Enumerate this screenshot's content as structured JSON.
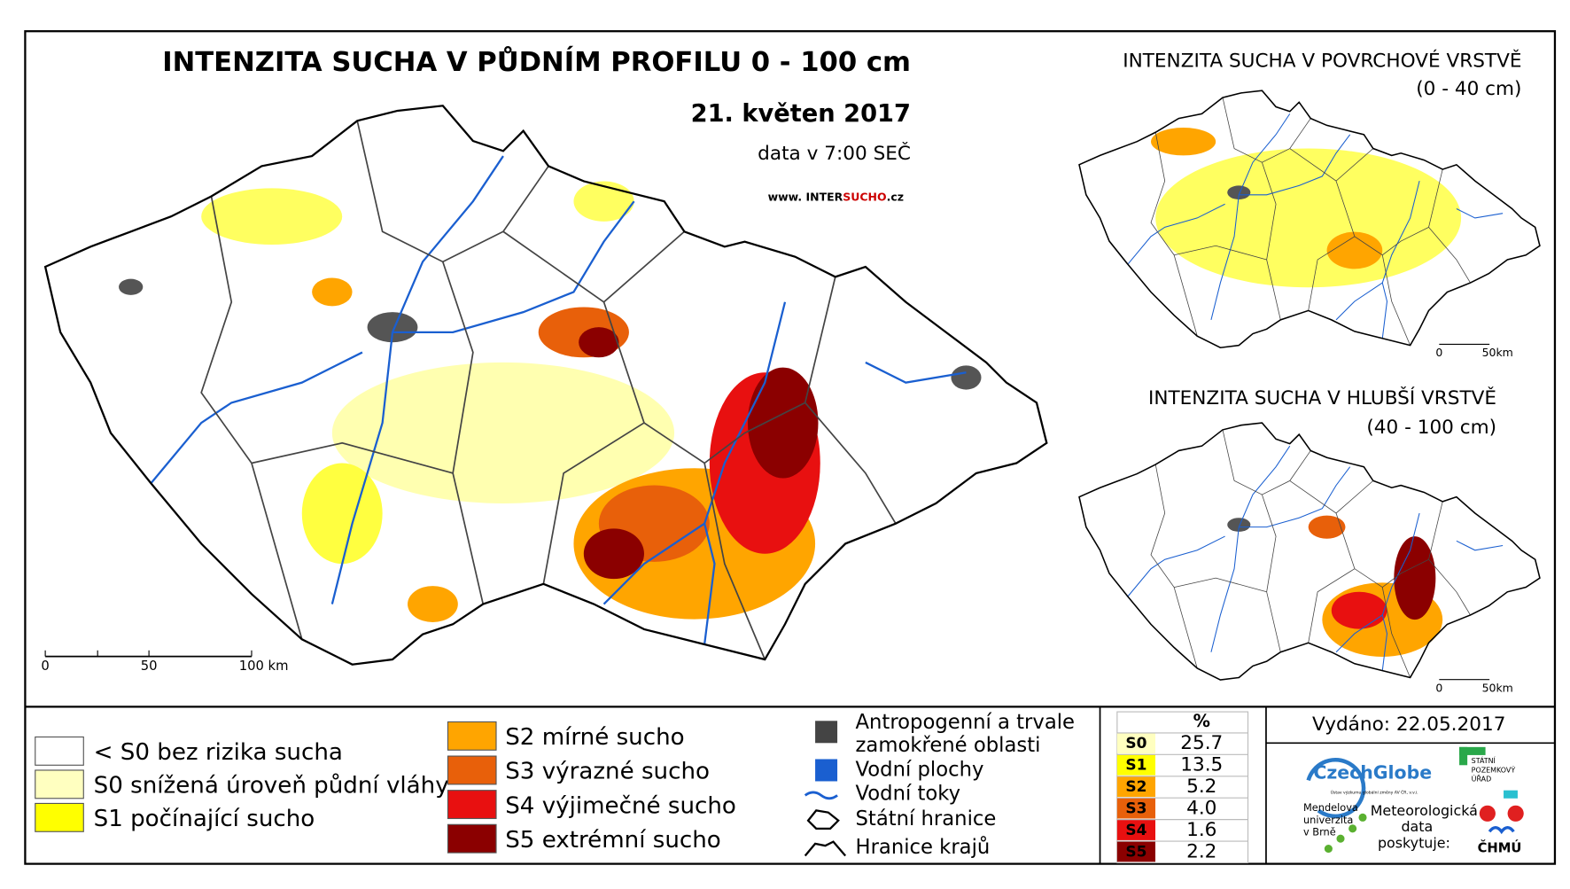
{
  "header": {
    "title": "INTENZITA SUCHA V PŮDNÍM PROFILU 0 - 100 cm",
    "date": "21. květen 2017",
    "data_time": "data v 7:00 SEČ",
    "website_prefix": "www. INTER",
    "website_highlight": "SUCHO",
    "website_suffix": ".cz"
  },
  "main_scale": [
    "0",
    "50",
    "100 km"
  ],
  "insets": [
    {
      "title": "INTENZITA SUCHA V POVRCHOVÉ VRSTVĚ",
      "subtitle": "(0 - 40 cm)",
      "scale": [
        "0",
        "50km"
      ]
    },
    {
      "title": "INTENZITA SUCHA V HLUBŠÍ VRSTVĚ",
      "subtitle": "(40 - 100 cm)",
      "scale": [
        "0",
        "50km"
      ]
    }
  ],
  "legend": {
    "drought_left": [
      {
        "label": "< S0 bez rizika sucha",
        "color": "#ffffff"
      },
      {
        "label": "S0 snížená úroveň půdní vláhy",
        "color": "#ffffc0"
      },
      {
        "label": "S1 počínající sucho",
        "color": "#ffff00"
      }
    ],
    "drought_right": [
      {
        "label": "S2 mírné sucho",
        "color": "#ffa500"
      },
      {
        "label": "S3 výrazné sucho",
        "color": "#e8600a"
      },
      {
        "label": "S4 výjimečné sucho",
        "color": "#e81010"
      },
      {
        "label": "S5 extrémní sucho",
        "color": "#8b0000"
      }
    ],
    "other": {
      "anthropogenic": [
        "Antropogenní a trvale",
        "zamokřené oblasti"
      ],
      "water_bodies": "Vodní plochy",
      "rivers": "Vodní toky",
      "state_border": "Státní hranice",
      "region_border": "Hranice krajů"
    }
  },
  "table": {
    "header": "%",
    "rows": [
      {
        "code": "S0",
        "value": "25.7",
        "color": "#ffffc0"
      },
      {
        "code": "S1",
        "value": "13.5",
        "color": "#ffff00"
      },
      {
        "code": "S2",
        "value": "5.2",
        "color": "#ffa500"
      },
      {
        "code": "S3",
        "value": "4.0",
        "color": "#e8600a"
      },
      {
        "code": "S4",
        "value": "1.6",
        "color": "#e81010"
      },
      {
        "code": "S5",
        "value": "2.2",
        "color": "#8b0000"
      }
    ]
  },
  "issued": "Vydáno: 22.05.2017",
  "logos": {
    "czechglobe": "CzechGlobe",
    "czechglobe_sub": "Ústav výzkumu globální změny AV ČR, v.v.i.",
    "spu": [
      "STÁTNÍ",
      "POZEMKOVÝ",
      "ÚŘAD"
    ],
    "mendel": [
      "Mendelova",
      "univerzita",
      "v Brně"
    ],
    "chmu_note": [
      "Meteorologická",
      "data",
      "poskytuje:"
    ],
    "chmu": "ČHMÚ"
  }
}
